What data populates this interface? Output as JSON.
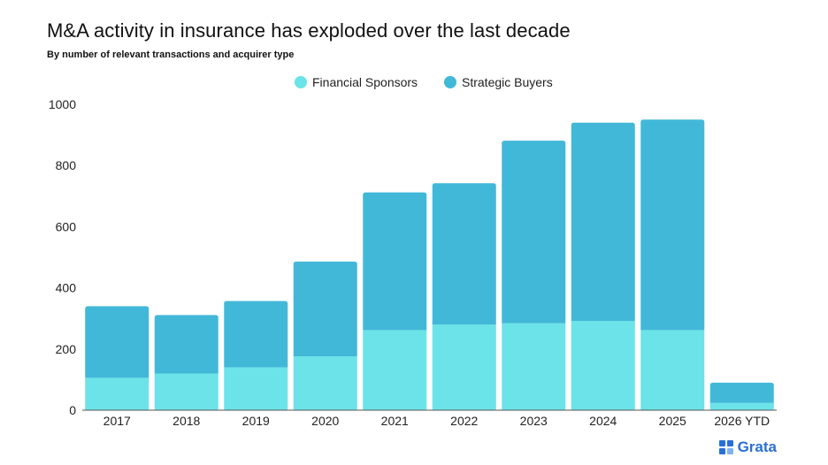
{
  "chart_data": {
    "type": "bar",
    "stacked": true,
    "title": "M&A activity in insurance has exploded over the last decade",
    "subtitle": "By number of relevant transactions and acquirer type",
    "xlabel": "",
    "ylabel": "",
    "categories": [
      "2017",
      "2018",
      "2019",
      "2020",
      "2021",
      "2022",
      "2023",
      "2024",
      "2025",
      "2026 YTD"
    ],
    "series": [
      {
        "name": "Financial Sponsors",
        "color": "#6be3e8",
        "values": [
          106,
          120,
          140,
          176,
          262,
          280,
          284,
          292,
          262,
          24
        ]
      },
      {
        "name": "Strategic Buyers",
        "color": "#42b8d8",
        "values": [
          234,
          191,
          217,
          310,
          450,
          462,
          597,
          648,
          688,
          66
        ]
      }
    ],
    "ylim": [
      0,
      1000
    ],
    "yticks": [
      0,
      200,
      400,
      600,
      800,
      1000
    ],
    "grid": false,
    "legend_position": "top-center"
  },
  "brand": {
    "name": "Grata",
    "icon": "grata-logo-icon",
    "color": "#2a6fd6"
  }
}
